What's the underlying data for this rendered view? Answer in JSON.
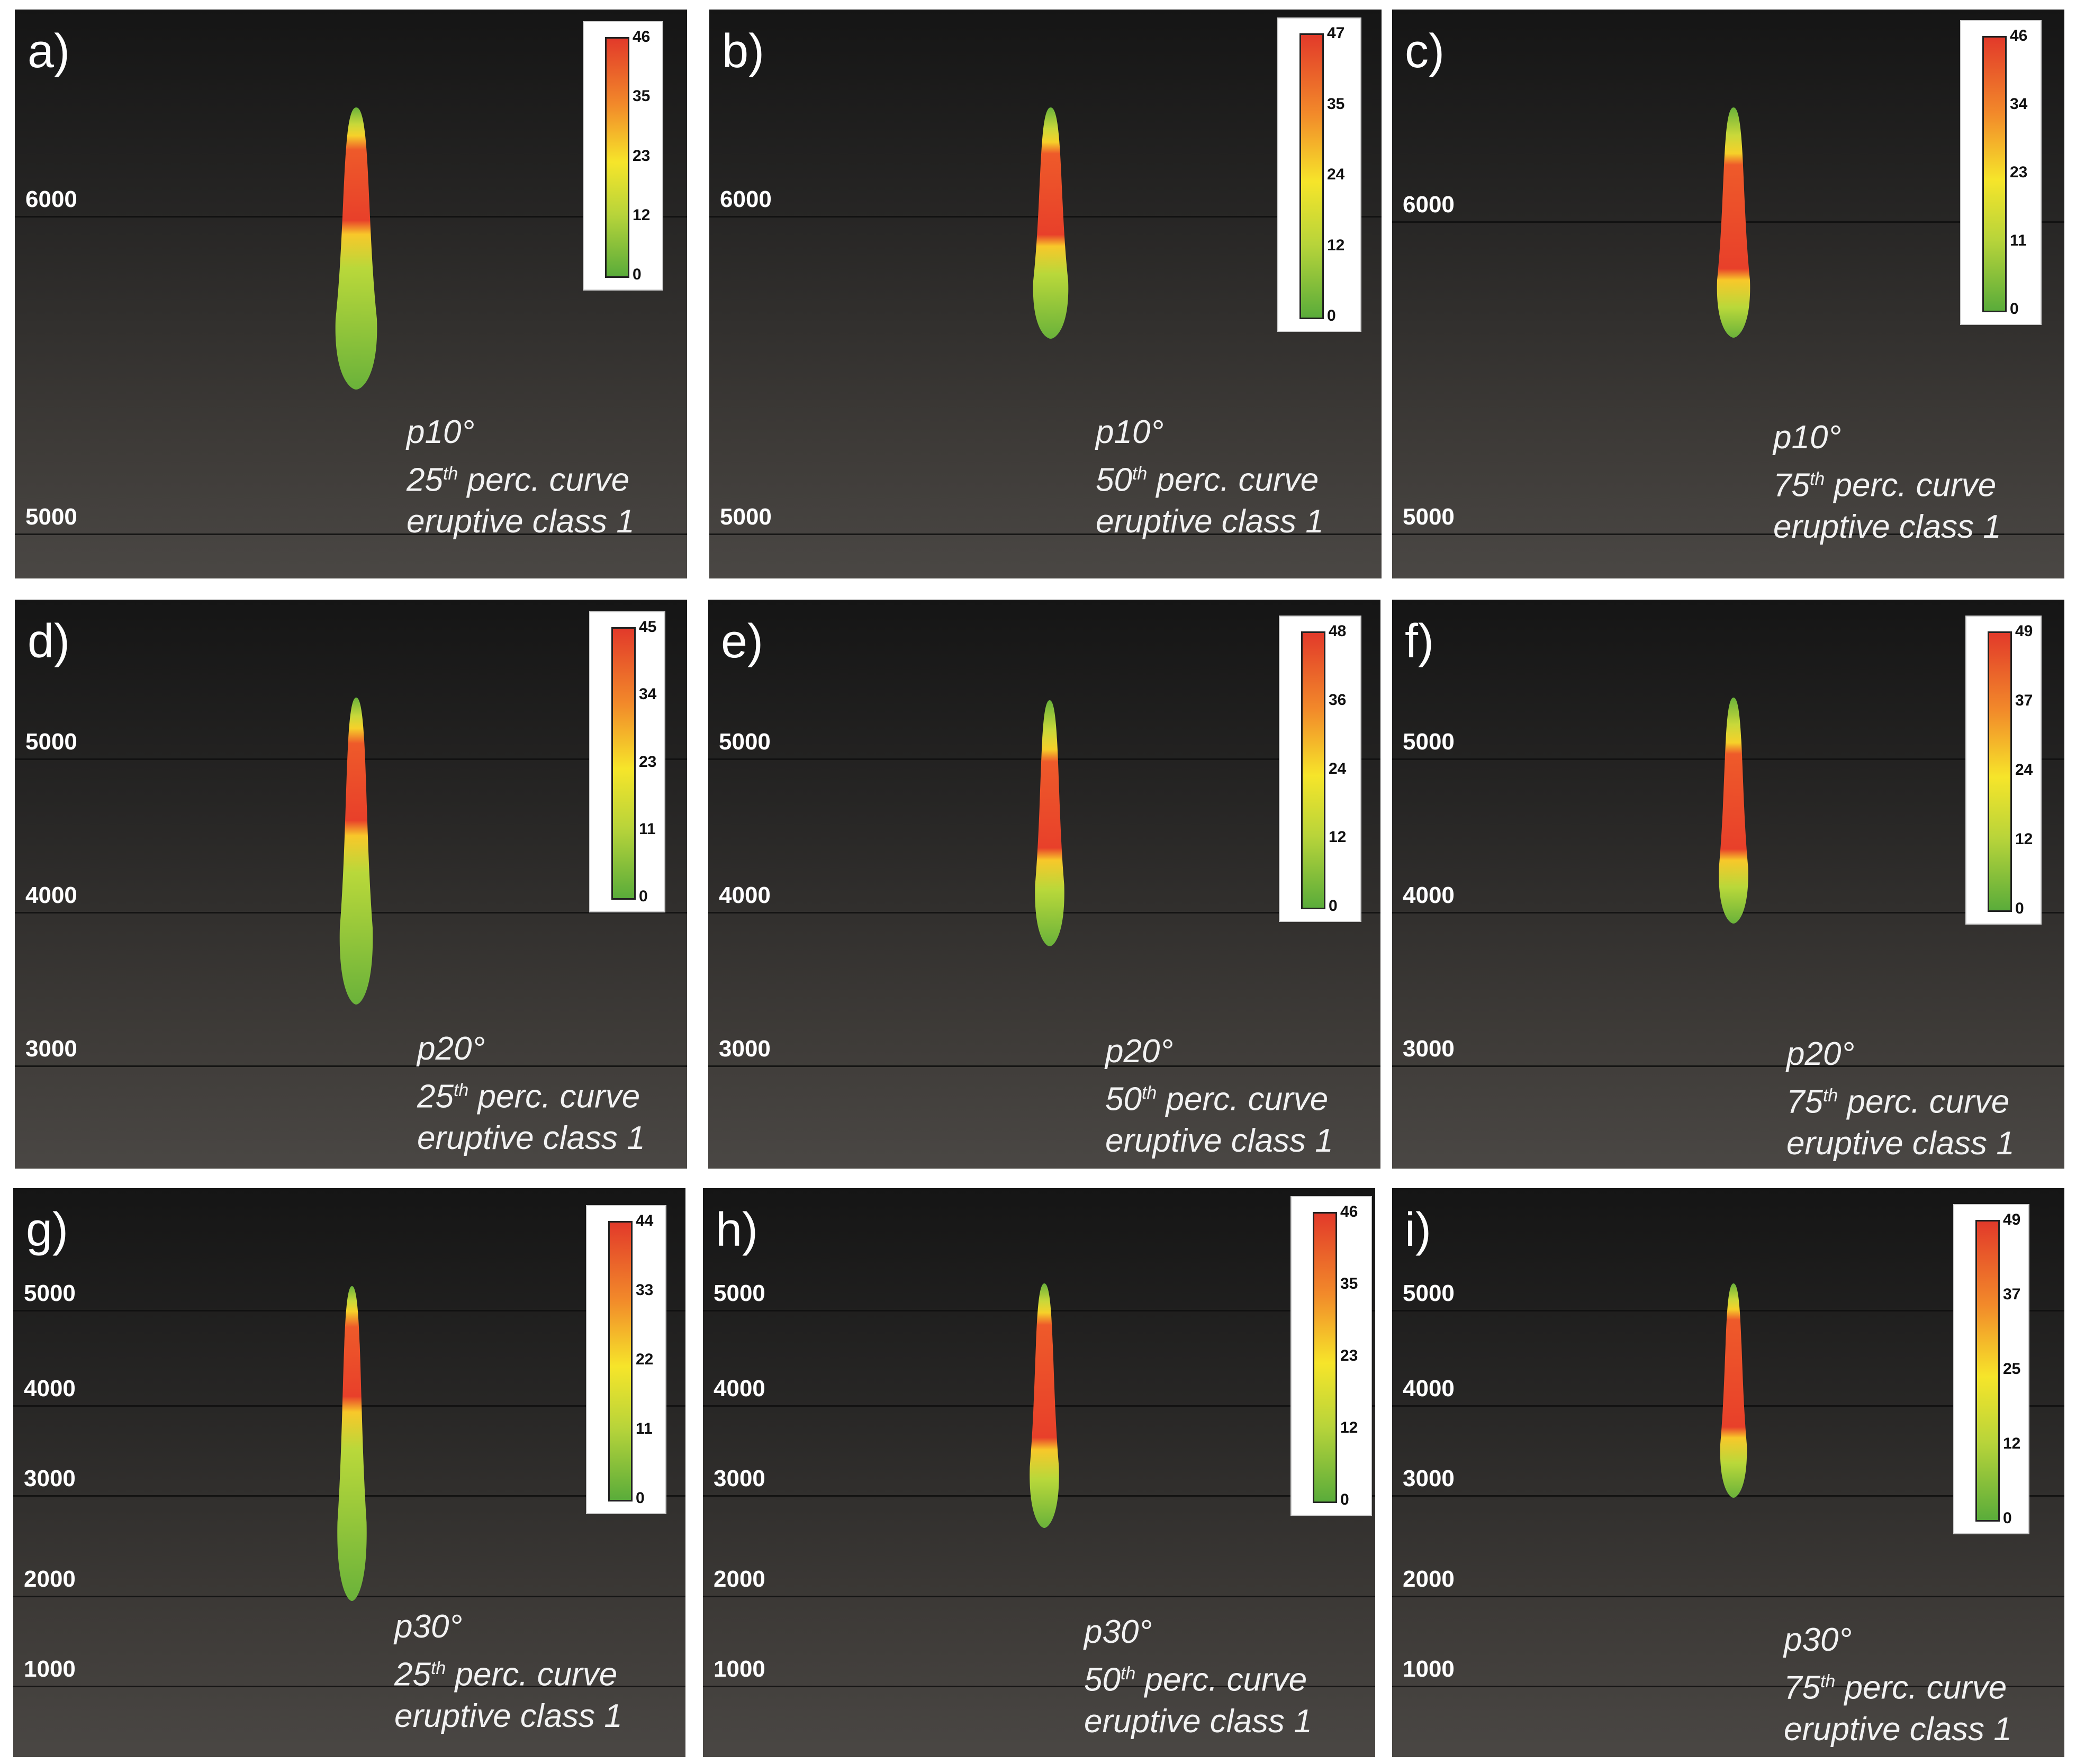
{
  "panels": [
    {
      "label": "a)",
      "ticks": [
        "6000",
        "5000"
      ],
      "legend": [
        "46",
        "35",
        "23",
        "12",
        "0"
      ],
      "angle": "p10°",
      "perc": "25",
      "sup": "th",
      "curve": " perc. curve",
      "klass": "eruptive class 1"
    },
    {
      "label": "b)",
      "ticks": [
        "6000",
        "5000"
      ],
      "legend": [
        "47",
        "35",
        "24",
        "12",
        "0"
      ],
      "angle": "p10°",
      "perc": "50",
      "sup": "th",
      "curve": " perc. curve",
      "klass": "eruptive class 1"
    },
    {
      "label": "c)",
      "ticks": [
        "6000",
        "5000"
      ],
      "legend": [
        "46",
        "34",
        "23",
        "11",
        "0"
      ],
      "angle": "p10°",
      "perc": "75",
      "sup": "th",
      "curve": " perc. curve",
      "klass": "eruptive class 1"
    },
    {
      "label": "d)",
      "ticks": [
        "5000",
        "4000",
        "3000"
      ],
      "legend": [
        "45",
        "34",
        "23",
        "11",
        "0"
      ],
      "angle": "p20°",
      "perc": "25",
      "sup": "th",
      "curve": " perc. curve",
      "klass": "eruptive class 1"
    },
    {
      "label": "e)",
      "ticks": [
        "5000",
        "4000",
        "3000"
      ],
      "legend": [
        "48",
        "36",
        "24",
        "12",
        "0"
      ],
      "angle": "p20°",
      "perc": "50",
      "sup": "th",
      "curve": " perc. curve",
      "klass": "eruptive class 1"
    },
    {
      "label": "f)",
      "ticks": [
        "5000",
        "4000",
        "3000"
      ],
      "legend": [
        "49",
        "37",
        "24",
        "12",
        "0"
      ],
      "angle": "p20°",
      "perc": "75",
      "sup": "th",
      "curve": " perc. curve",
      "klass": "eruptive class 1"
    },
    {
      "label": "g)",
      "ticks": [
        "5000",
        "4000",
        "3000",
        "2000",
        "1000"
      ],
      "legend": [
        "44",
        "33",
        "22",
        "11",
        "0"
      ],
      "angle": "p30°",
      "perc": "25",
      "sup": "th",
      "curve": " perc. curve",
      "klass": "eruptive class 1"
    },
    {
      "label": "h)",
      "ticks": [
        "5000",
        "4000",
        "3000",
        "2000",
        "1000"
      ],
      "legend": [
        "46",
        "35",
        "23",
        "12",
        "0"
      ],
      "angle": "p30°",
      "perc": "50",
      "sup": "th",
      "curve": " perc. curve",
      "klass": "eruptive class 1"
    },
    {
      "label": "i)",
      "ticks": [
        "5000",
        "4000",
        "3000",
        "2000",
        "1000"
      ],
      "legend": [
        "49",
        "37",
        "25",
        "12",
        "0"
      ],
      "angle": "p30°",
      "perc": "75",
      "sup": "th",
      "curve": " perc. curve",
      "klass": "eruptive class 1"
    }
  ]
}
